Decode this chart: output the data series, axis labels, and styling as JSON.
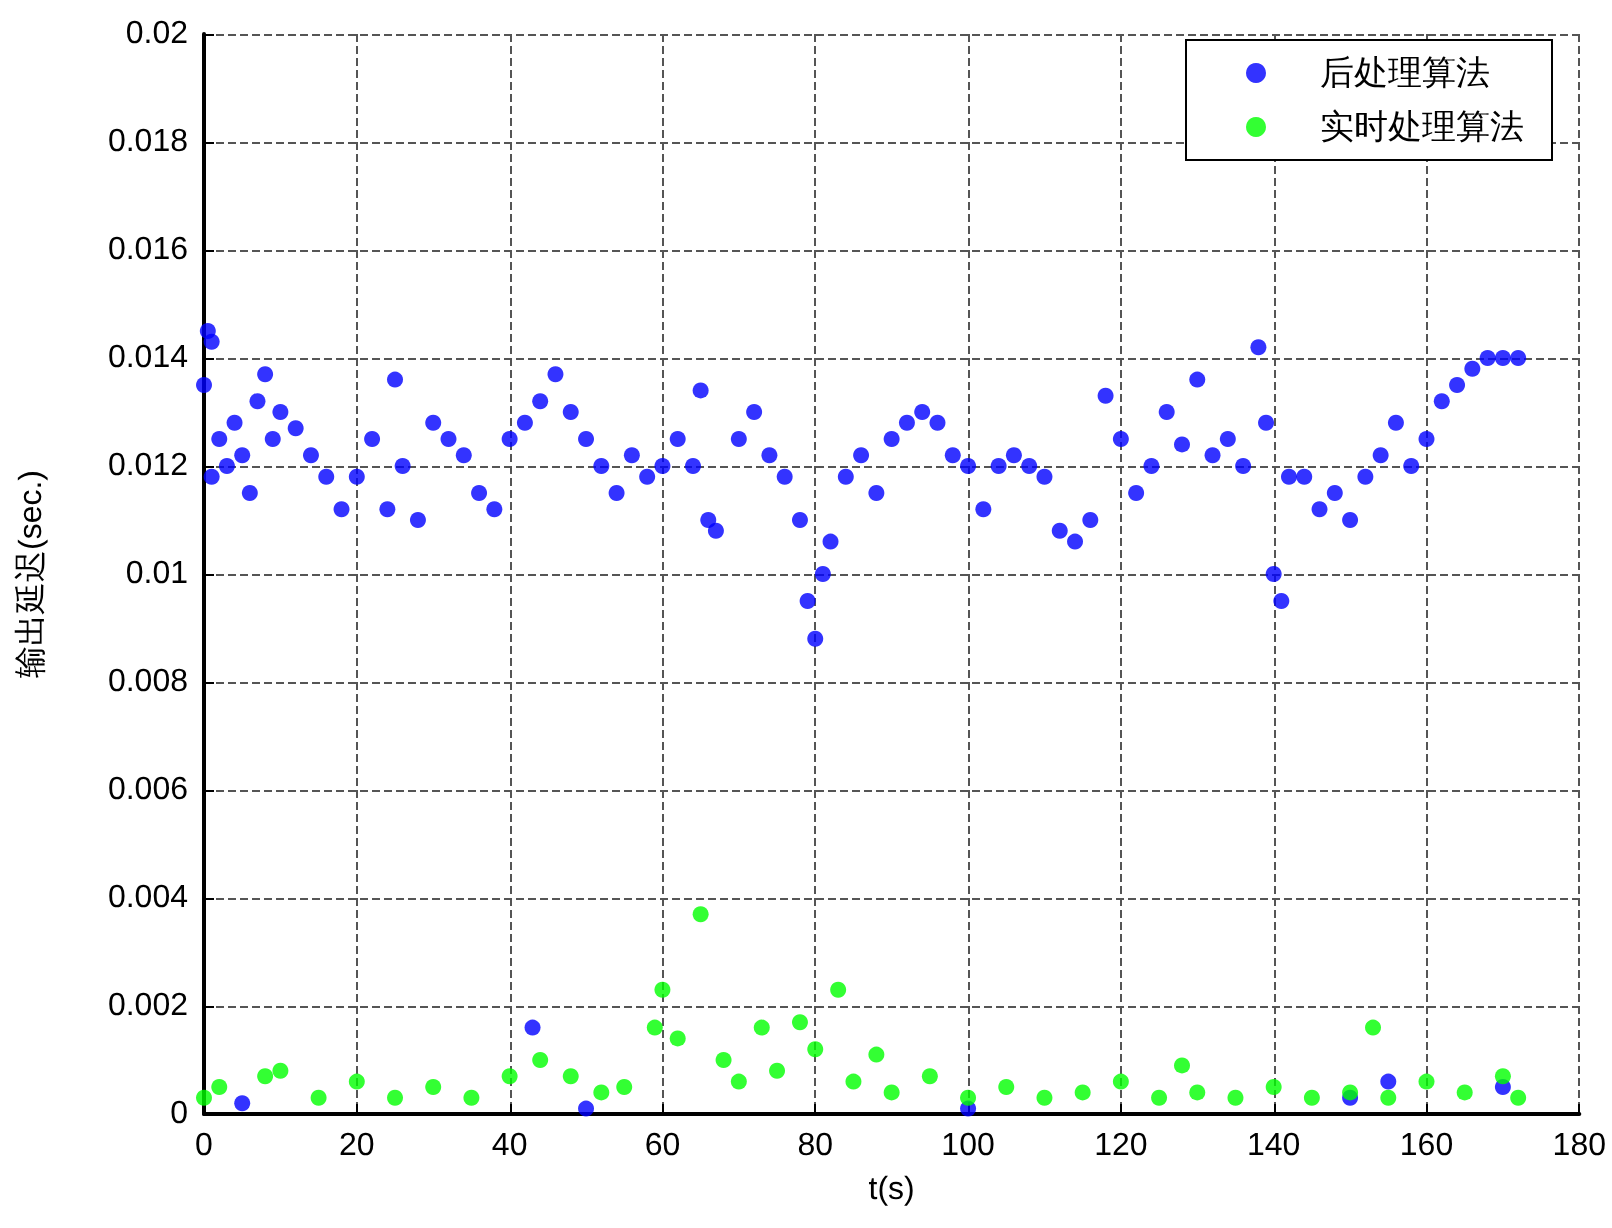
{
  "chart_data": {
    "type": "scatter",
    "xlabel": "t(s)",
    "ylabel": "输出延迟(sec.)",
    "xlim": [
      0,
      180
    ],
    "xticks": [
      0,
      20,
      40,
      60,
      80,
      100,
      120,
      140,
      160,
      180
    ],
    "ylim": [
      0,
      0.02
    ],
    "yticks": [
      0,
      0.002,
      0.004,
      0.006,
      0.008,
      0.01,
      0.012,
      0.014,
      0.016,
      0.018,
      0.02
    ],
    "grid": true,
    "legend": "top right",
    "marker": "circle",
    "series": [
      {
        "name": "后处理算法",
        "color": "#0000ff",
        "x": [
          0,
          0.5,
          1,
          1,
          2,
          3,
          4,
          5,
          6,
          7,
          8,
          9,
          10,
          12,
          14,
          16,
          18,
          20,
          22,
          24,
          25,
          26,
          28,
          30,
          32,
          34,
          36,
          38,
          40,
          42,
          44,
          46,
          48,
          50,
          52,
          54,
          56,
          58,
          60,
          62,
          64,
          65,
          66,
          67,
          70,
          72,
          74,
          76,
          78,
          79,
          80,
          81,
          82,
          84,
          86,
          88,
          90,
          92,
          94,
          96,
          98,
          100,
          102,
          104,
          106,
          108,
          110,
          112,
          114,
          116,
          118,
          120,
          122,
          124,
          126,
          128,
          130,
          132,
          134,
          136,
          138,
          139,
          140,
          141,
          142,
          144,
          146,
          148,
          150,
          152,
          154,
          156,
          158,
          160,
          162,
          164,
          166,
          168,
          170,
          172,
          5,
          43,
          50,
          100,
          150,
          155,
          170
        ],
        "values": [
          0.0135,
          0.0145,
          0.0143,
          0.0118,
          0.0125,
          0.012,
          0.0128,
          0.0122,
          0.0115,
          0.0132,
          0.0137,
          0.0125,
          0.013,
          0.0127,
          0.0122,
          0.0118,
          0.0112,
          0.0118,
          0.0125,
          0.0112,
          0.0136,
          0.012,
          0.011,
          0.0128,
          0.0125,
          0.0122,
          0.0115,
          0.0112,
          0.0125,
          0.0128,
          0.0132,
          0.0137,
          0.013,
          0.0125,
          0.012,
          0.0115,
          0.0122,
          0.0118,
          0.012,
          0.0125,
          0.012,
          0.0134,
          0.011,
          0.0108,
          0.0125,
          0.013,
          0.0122,
          0.0118,
          0.011,
          0.0095,
          0.0088,
          0.01,
          0.0106,
          0.0118,
          0.0122,
          0.0115,
          0.0125,
          0.0128,
          0.013,
          0.0128,
          0.0122,
          0.012,
          0.0112,
          0.012,
          0.0122,
          0.012,
          0.0118,
          0.0108,
          0.0106,
          0.011,
          0.0133,
          0.0125,
          0.0115,
          0.012,
          0.013,
          0.0124,
          0.0136,
          0.0122,
          0.0125,
          0.012,
          0.0142,
          0.0128,
          0.01,
          0.0095,
          0.0118,
          0.0118,
          0.0112,
          0.0115,
          0.011,
          0.0118,
          0.0122,
          0.0128,
          0.012,
          0.0125,
          0.0132,
          0.0135,
          0.0138,
          0.014,
          0.014,
          0.014,
          0.0002,
          0.0016,
          0.0001,
          0.0001,
          0.0003,
          0.0006,
          0.0005
        ]
      },
      {
        "name": "实时处理算法",
        "color": "#00ff00",
        "x": [
          0,
          2,
          8,
          10,
          15,
          20,
          25,
          30,
          35,
          40,
          44,
          48,
          52,
          55,
          59,
          60,
          62,
          65,
          68,
          70,
          73,
          75,
          78,
          80,
          83,
          85,
          88,
          90,
          95,
          100,
          105,
          110,
          115,
          120,
          125,
          128,
          130,
          135,
          140,
          145,
          150,
          153,
          155,
          160,
          165,
          170,
          172
        ],
        "values": [
          0.0003,
          0.0005,
          0.0007,
          0.0008,
          0.0003,
          0.0006,
          0.0003,
          0.0005,
          0.0003,
          0.0007,
          0.001,
          0.0007,
          0.0004,
          0.0005,
          0.0016,
          0.0023,
          0.0014,
          0.0037,
          0.001,
          0.0006,
          0.0016,
          0.0008,
          0.0017,
          0.0012,
          0.0023,
          0.0006,
          0.0011,
          0.0004,
          0.0007,
          0.0003,
          0.0005,
          0.0003,
          0.0004,
          0.0006,
          0.0003,
          0.0009,
          0.0004,
          0.0003,
          0.0005,
          0.0003,
          0.0004,
          0.0016,
          0.0003,
          0.0006,
          0.0004,
          0.0007,
          0.0003
        ]
      }
    ]
  }
}
